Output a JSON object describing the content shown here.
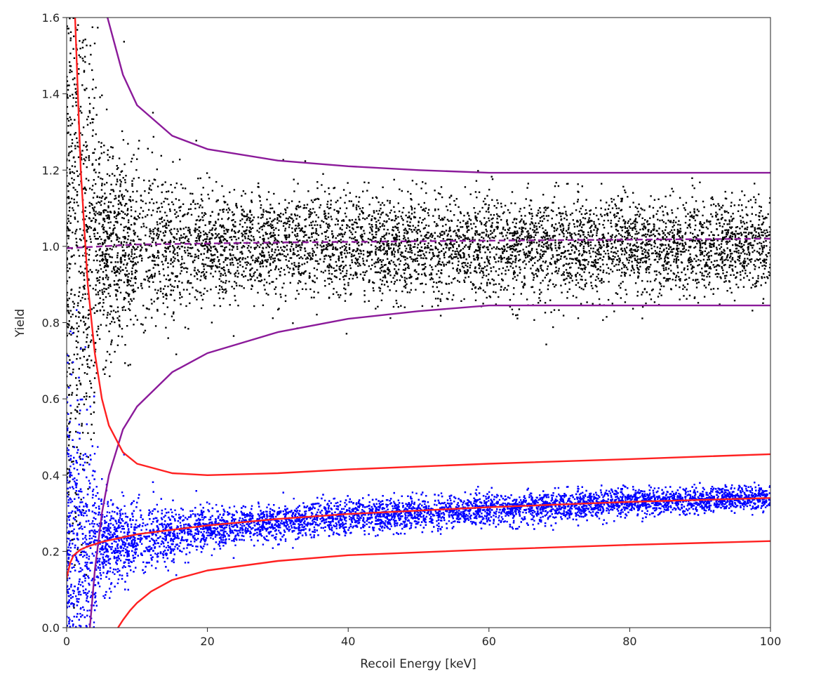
{
  "chart_data": {
    "type": "scatter",
    "title": "",
    "xlabel": "Recoil Energy [keV]",
    "ylabel": "Yield",
    "xlim": [
      0,
      100
    ],
    "ylim": [
      0.0,
      1.6
    ],
    "xticks": [
      0,
      20,
      40,
      60,
      80,
      100
    ],
    "xtick_labels": [
      "0",
      "20",
      "40",
      "60",
      "80",
      "100"
    ],
    "yticks": [
      0.0,
      0.2,
      0.4,
      0.6,
      0.8,
      1.0,
      1.2,
      1.4,
      1.6
    ],
    "ytick_labels": [
      "0.0",
      "0.2",
      "0.4",
      "0.6",
      "0.8",
      "1.0",
      "1.2",
      "1.4",
      "1.6"
    ],
    "grid": false,
    "legend": "none",
    "colors": {
      "electron_recoil_points": "#000000",
      "nuclear_recoil_points": "#0000ff",
      "electron_band": "#8b1a9a",
      "nuclear_band": "#ff2020"
    },
    "scatter_series": [
      {
        "color": "#000000",
        "approx_count": 6500,
        "mean_yield_samples": [
          [
            1,
            1.0
          ],
          [
            20,
            1.0
          ],
          [
            50,
            1.0
          ],
          [
            100,
            1.0
          ]
        ],
        "sigma_yield_samples": [
          [
            1,
            0.5
          ],
          [
            5,
            0.14
          ],
          [
            20,
            0.07
          ],
          [
            100,
            0.06
          ]
        ],
        "x_range": [
          0,
          100
        ]
      },
      {
        "color": "#0000ff",
        "approx_count": 9000,
        "mean_yield_samples": [
          [
            1,
            0.17
          ],
          [
            5,
            0.22
          ],
          [
            20,
            0.26
          ],
          [
            40,
            0.29
          ],
          [
            60,
            0.31
          ],
          [
            80,
            0.33
          ],
          [
            100,
            0.34
          ]
        ],
        "sigma_yield_samples": [
          [
            1,
            0.25
          ],
          [
            5,
            0.06
          ],
          [
            20,
            0.025
          ],
          [
            100,
            0.015
          ]
        ],
        "x_range": [
          0,
          100
        ]
      }
    ],
    "lines": [
      {
        "color": "#8b1a9a",
        "style": "solid",
        "points": [
          [
            5.8,
            1.6
          ],
          [
            8,
            1.45
          ],
          [
            10,
            1.37
          ],
          [
            15,
            1.29
          ],
          [
            20,
            1.255
          ],
          [
            30,
            1.225
          ],
          [
            40,
            1.21
          ],
          [
            50,
            1.2
          ],
          [
            60,
            1.193
          ],
          [
            80,
            1.193
          ],
          [
            100,
            1.193
          ]
        ]
      },
      {
        "color": "#8b1a9a",
        "style": "dashed",
        "points": [
          [
            0,
            0.995
          ],
          [
            10,
            1.005
          ],
          [
            30,
            1.01
          ],
          [
            60,
            1.015
          ],
          [
            100,
            1.02
          ]
        ]
      },
      {
        "color": "#8b1a9a",
        "style": "solid",
        "points": [
          [
            3.3,
            0.0
          ],
          [
            4,
            0.15
          ],
          [
            5,
            0.3
          ],
          [
            6,
            0.4
          ],
          [
            8,
            0.52
          ],
          [
            10,
            0.58
          ],
          [
            15,
            0.67
          ],
          [
            20,
            0.72
          ],
          [
            30,
            0.775
          ],
          [
            40,
            0.81
          ],
          [
            50,
            0.83
          ],
          [
            60,
            0.845
          ],
          [
            80,
            0.845
          ],
          [
            100,
            0.845
          ]
        ]
      },
      {
        "color": "#ff2020",
        "style": "solid",
        "points": [
          [
            1.2,
            1.6
          ],
          [
            1.6,
            1.4
          ],
          [
            2,
            1.2
          ],
          [
            2.5,
            1.05
          ],
          [
            3,
            0.9
          ],
          [
            4,
            0.72
          ],
          [
            5,
            0.6
          ],
          [
            6,
            0.53
          ],
          [
            8,
            0.46
          ],
          [
            10,
            0.43
          ],
          [
            15,
            0.405
          ],
          [
            20,
            0.4
          ],
          [
            30,
            0.405
          ],
          [
            40,
            0.415
          ],
          [
            60,
            0.43
          ],
          [
            80,
            0.442
          ],
          [
            100,
            0.455
          ]
        ]
      },
      {
        "color": "#ff2020",
        "style": "solid",
        "points": [
          [
            0,
            0.13
          ],
          [
            0.5,
            0.17
          ],
          [
            1,
            0.19
          ],
          [
            2,
            0.205
          ],
          [
            3,
            0.213
          ],
          [
            5,
            0.225
          ],
          [
            10,
            0.245
          ],
          [
            20,
            0.268
          ],
          [
            30,
            0.285
          ],
          [
            40,
            0.298
          ],
          [
            60,
            0.316
          ],
          [
            80,
            0.33
          ],
          [
            100,
            0.34
          ]
        ]
      },
      {
        "color": "#ff2020",
        "style": "solid",
        "points": [
          [
            7.3,
            0.0
          ],
          [
            8,
            0.02
          ],
          [
            9,
            0.045
          ],
          [
            10,
            0.065
          ],
          [
            12,
            0.095
          ],
          [
            15,
            0.125
          ],
          [
            20,
            0.15
          ],
          [
            30,
            0.175
          ],
          [
            40,
            0.19
          ],
          [
            60,
            0.205
          ],
          [
            80,
            0.217
          ],
          [
            100,
            0.227
          ]
        ]
      }
    ]
  }
}
